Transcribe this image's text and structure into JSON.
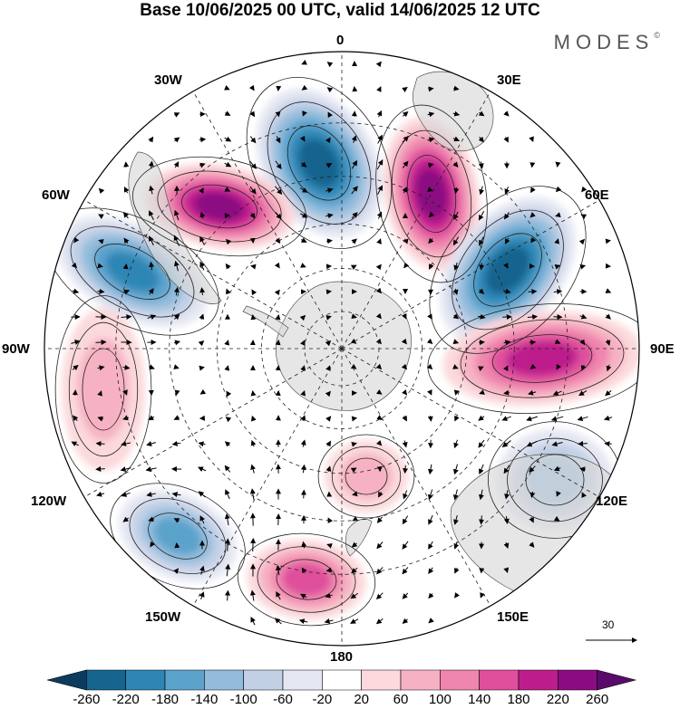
{
  "title": "Base 10/06/2025 00 UTC, valid 14/06/2025 12 UTC",
  "brand": "MODES",
  "brand_mark": "©",
  "lon_labels": {
    "n0": "0",
    "n30e": "30E",
    "n60e": "60E",
    "n90e": "90E",
    "n120e": "120E",
    "n150e": "150E",
    "n180": "180",
    "n150w": "150W",
    "n120w": "120W",
    "n90w": "90W",
    "n60w": "60W",
    "n30w": "30W"
  },
  "vector_reference": "30",
  "colorbar": {
    "ticks": [
      "-260",
      "-220",
      "-180",
      "-140",
      "-100",
      "-60",
      "-20",
      "20",
      "60",
      "100",
      "140",
      "180",
      "220",
      "260"
    ],
    "colors": [
      "#0d3b5e",
      "#17648e",
      "#2f86b5",
      "#5ca3cc",
      "#93bcdc",
      "#c2d0e6",
      "#e4e6f2",
      "#ffffff",
      "#fbd9dc",
      "#f6b2c3",
      "#ef86ae",
      "#df4f9c",
      "#bd1d8c",
      "#8b0c82",
      "#5a0a6b"
    ]
  },
  "map": {
    "projection": "south polar stereographic",
    "field_unit_levels": [
      -260,
      -220,
      -180,
      -140,
      -100,
      -60,
      -20,
      20,
      60,
      100,
      140,
      180,
      220,
      260
    ],
    "features": [
      {
        "id": "neg-a",
        "center_lon": "0",
        "value": -240
      },
      {
        "id": "pos-a",
        "center_lon": "30E",
        "value": 240
      },
      {
        "id": "pos-b",
        "center_lon": "40W",
        "value": 230
      },
      {
        "id": "neg-b",
        "center_lon": "60E",
        "value": -230
      },
      {
        "id": "neg-c",
        "center_lon": "70W",
        "value": -200
      },
      {
        "id": "pos-c",
        "center_lon": "90E",
        "value": 210
      },
      {
        "id": "pos-d",
        "center_lon": "100W",
        "value": 90
      },
      {
        "id": "neg-d",
        "center_lon": "120E",
        "value": -130
      },
      {
        "id": "neg-e",
        "center_lon": "135W",
        "value": -160
      },
      {
        "id": "pos-e",
        "center_lon": "165W",
        "value": 160
      },
      {
        "id": "pos-f",
        "center_lon": "175E",
        "value": 80
      }
    ]
  }
}
